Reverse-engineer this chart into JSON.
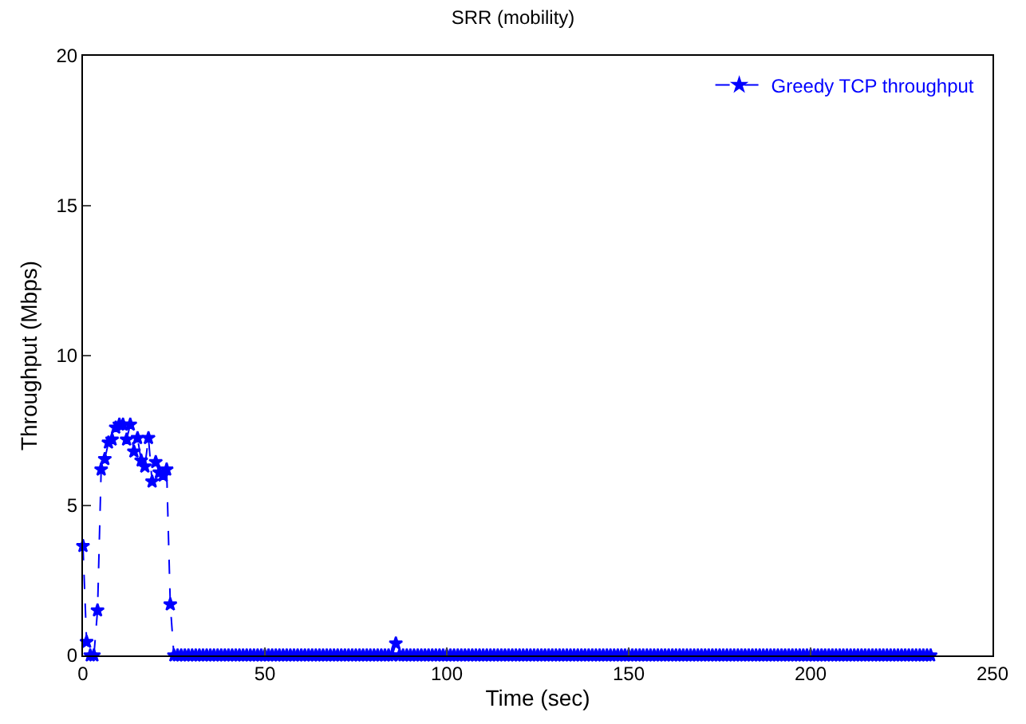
{
  "chart_data": {
    "type": "line",
    "title": "SRR (mobility)",
    "xlabel": "Time (sec)",
    "ylabel": "Throughput (Mbps)",
    "x": [
      0,
      1,
      2,
      3,
      4,
      5,
      6,
      7,
      8,
      9,
      10,
      11,
      12,
      13,
      14,
      15,
      16,
      17,
      18,
      19,
      20,
      21,
      22,
      23,
      24,
      25,
      26,
      27,
      28,
      29,
      30,
      31,
      32,
      33,
      34,
      35,
      36,
      37,
      38,
      39,
      40,
      41,
      42,
      43,
      44,
      45,
      46,
      47,
      48,
      49,
      50,
      51,
      52,
      53,
      54,
      55,
      56,
      57,
      58,
      59,
      60,
      61,
      62,
      63,
      64,
      65,
      66,
      67,
      68,
      69,
      70,
      71,
      72,
      73,
      74,
      75,
      76,
      77,
      78,
      79,
      80,
      81,
      82,
      83,
      84,
      85,
      86,
      87,
      88,
      89,
      90,
      91,
      92,
      93,
      94,
      95,
      96,
      97,
      98,
      99,
      100,
      101,
      102,
      103,
      104,
      105,
      106,
      107,
      108,
      109,
      110,
      111,
      112,
      113,
      114,
      115,
      116,
      117,
      118,
      119,
      120,
      121,
      122,
      123,
      124,
      125,
      126,
      127,
      128,
      129,
      130,
      131,
      132,
      133,
      134,
      135,
      136,
      137,
      138,
      139,
      140,
      141,
      142,
      143,
      144,
      145,
      146,
      147,
      148,
      149,
      150,
      151,
      152,
      153,
      154,
      155,
      156,
      157,
      158,
      159,
      160,
      161,
      162,
      163,
      164,
      165,
      166,
      167,
      168,
      169,
      170,
      171,
      172,
      173,
      174,
      175,
      176,
      177,
      178,
      179,
      180,
      181,
      182,
      183,
      184,
      185,
      186,
      187,
      188,
      189,
      190,
      191,
      192,
      193,
      194,
      195,
      196,
      197,
      198,
      199,
      200,
      201,
      202,
      203,
      204,
      205,
      206,
      207,
      208,
      209,
      210,
      211,
      212,
      213,
      214,
      215,
      216,
      217,
      218,
      219,
      220,
      221,
      222,
      223,
      224,
      225,
      226,
      227,
      228,
      229,
      230,
      231,
      232,
      233
    ],
    "series": [
      {
        "name": "Greedy TCP throughput",
        "color": "#0000ff",
        "values": [
          3.65,
          0.45,
          0,
          0,
          1.5,
          6.2,
          6.55,
          7.1,
          7.2,
          7.6,
          7.7,
          7.7,
          7.2,
          7.7,
          6.8,
          7.25,
          6.5,
          6.3,
          7.25,
          5.8,
          6.45,
          6.1,
          6.0,
          6.2,
          1.7,
          0,
          0,
          0,
          0,
          0,
          0,
          0,
          0,
          0,
          0,
          0,
          0,
          0,
          0,
          0,
          0,
          0,
          0,
          0,
          0,
          0,
          0,
          0,
          0,
          0,
          0,
          0,
          0,
          0,
          0,
          0,
          0,
          0,
          0,
          0,
          0,
          0,
          0,
          0,
          0,
          0,
          0,
          0,
          0,
          0,
          0,
          0,
          0,
          0,
          0,
          0,
          0,
          0,
          0,
          0,
          0,
          0,
          0,
          0,
          0,
          0,
          0.4,
          0,
          0,
          0,
          0,
          0,
          0,
          0,
          0,
          0,
          0,
          0,
          0,
          0,
          0,
          0,
          0,
          0,
          0,
          0,
          0,
          0,
          0,
          0,
          0,
          0,
          0,
          0,
          0,
          0,
          0,
          0,
          0,
          0,
          0,
          0,
          0,
          0,
          0,
          0,
          0,
          0,
          0,
          0,
          0,
          0,
          0,
          0,
          0,
          0,
          0,
          0,
          0,
          0,
          0,
          0,
          0,
          0,
          0,
          0,
          0,
          0,
          0,
          0,
          0,
          0,
          0,
          0,
          0,
          0,
          0,
          0,
          0,
          0,
          0,
          0,
          0,
          0,
          0,
          0,
          0,
          0,
          0,
          0,
          0,
          0,
          0,
          0,
          0,
          0,
          0,
          0,
          0,
          0,
          0,
          0,
          0,
          0,
          0,
          0,
          0,
          0,
          0,
          0,
          0,
          0,
          0,
          0,
          0,
          0,
          0,
          0,
          0,
          0,
          0,
          0,
          0,
          0,
          0,
          0,
          0,
          0,
          0,
          0,
          0,
          0,
          0,
          0,
          0,
          0,
          0,
          0,
          0,
          0,
          0,
          0,
          0,
          0,
          0,
          0,
          0,
          0,
          0,
          0,
          0,
          0,
          0,
          0
        ]
      }
    ],
    "xlim": [
      0,
      250
    ],
    "xticks": [
      0,
      50,
      100,
      150,
      200,
      250
    ],
    "ylim": [
      0,
      20
    ],
    "yticks": [
      0,
      5,
      10,
      15,
      20
    ],
    "legend": "top right",
    "marker": "star",
    "line_style": "dashed"
  }
}
